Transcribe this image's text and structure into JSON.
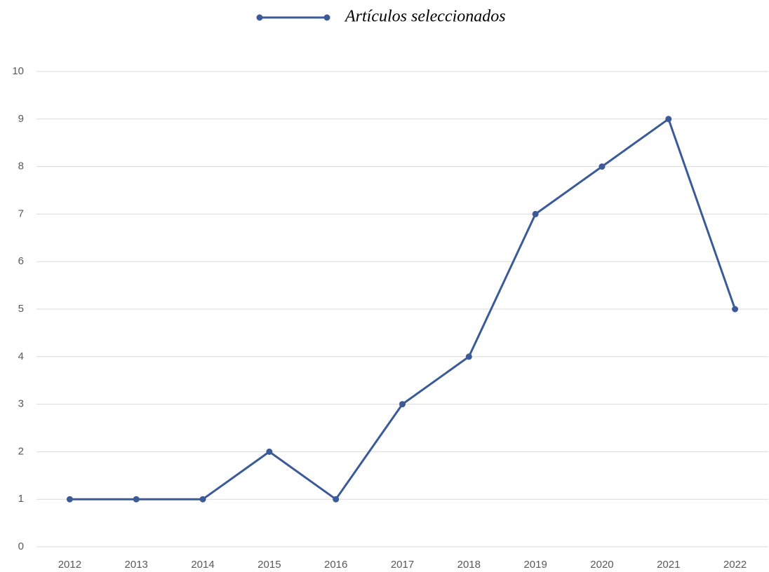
{
  "chart_data": {
    "type": "line",
    "categories": [
      "2012",
      "2013",
      "2014",
      "2015",
      "2016",
      "2017",
      "2018",
      "2019",
      "2020",
      "2021",
      "2022"
    ],
    "series": [
      {
        "name": "Artículos seleccionados",
        "color": "#3b5a98",
        "values": [
          1,
          1,
          1,
          2,
          1,
          3,
          4,
          7,
          8,
          9,
          5
        ]
      }
    ],
    "ylim": [
      0,
      10
    ],
    "yticks": [
      0,
      1,
      2,
      3,
      4,
      5,
      6,
      7,
      8,
      9,
      10
    ],
    "grid": true,
    "legend": "top"
  }
}
